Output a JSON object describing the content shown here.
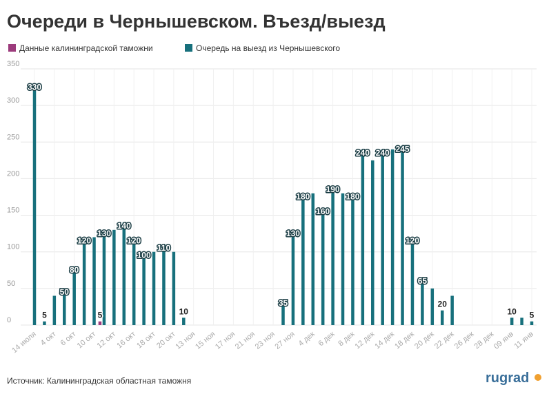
{
  "chart_data": {
    "type": "bar",
    "title": "Очереди в Чернышевском. Въезд/выезд",
    "source": "Источник: Калининградская областная таможня",
    "logo": "rugrad",
    "categories": [
      "14 июля",
      null,
      "4 окт",
      null,
      "6 окт",
      null,
      "10 окт",
      null,
      "12 окт",
      null,
      "16 окт",
      null,
      "18 окт",
      null,
      "20 окт",
      null,
      "13 ноя",
      null,
      "15 ноя",
      null,
      "17 ноя",
      null,
      "21 ноя",
      null,
      "23 ноя",
      null,
      "27 ноя",
      null,
      "4 дек",
      null,
      "6 дек",
      null,
      "8 дек",
      null,
      "12 дек",
      null,
      "14 дек",
      null,
      "18 дек",
      null,
      "20 дек",
      null,
      "22 дек",
      null,
      "26 дек",
      null,
      "28 дек",
      null,
      "09 янв",
      null,
      "11 янв"
    ],
    "series": [
      {
        "name": "Данные калининградской таможни",
        "color": "#9c3b7c",
        "values": [
          null,
          null,
          null,
          null,
          null,
          null,
          null,
          5,
          null,
          null,
          null,
          null,
          null,
          null,
          null,
          null,
          null,
          null,
          null,
          null,
          null,
          null,
          null,
          null,
          null,
          null,
          null,
          null,
          null,
          null,
          null,
          null,
          null,
          null,
          null,
          null,
          null,
          null,
          null,
          null,
          null,
          null,
          null,
          null,
          null,
          null,
          null,
          null,
          null,
          null,
          null
        ],
        "value_labels": [
          null,
          null,
          null,
          null,
          null,
          null,
          null,
          "5",
          null,
          null,
          null,
          null,
          null,
          null,
          null,
          null,
          null,
          null,
          null,
          null,
          null,
          null,
          null,
          null,
          null,
          null,
          null,
          null,
          null,
          null,
          null,
          null,
          null,
          null,
          null,
          null,
          null,
          null,
          null,
          null,
          null,
          null,
          null,
          null,
          null,
          null,
          null,
          null,
          null,
          null,
          null
        ]
      },
      {
        "name": "Очередь на выезд из Чернышевского",
        "color": "#17707c",
        "values": [
          330,
          5,
          40,
          50,
          80,
          120,
          120,
          130,
          130,
          140,
          120,
          100,
          100,
          110,
          100,
          10,
          null,
          null,
          null,
          null,
          null,
          null,
          null,
          null,
          null,
          35,
          130,
          180,
          180,
          160,
          190,
          180,
          180,
          240,
          225,
          240,
          240,
          245,
          120,
          65,
          50,
          20,
          40,
          null,
          null,
          null,
          null,
          null,
          10,
          10,
          5
        ],
        "value_labels": [
          "330",
          "5",
          null,
          "50",
          "80",
          "120",
          null,
          "130",
          null,
          "140",
          "120",
          "100",
          null,
          "110",
          null,
          "10",
          null,
          null,
          null,
          null,
          null,
          null,
          null,
          null,
          null,
          "35",
          "130",
          "180",
          null,
          "160",
          "190",
          null,
          "180",
          "240",
          null,
          "240",
          null,
          "245",
          "120",
          "65",
          null,
          "20",
          null,
          null,
          null,
          null,
          null,
          null,
          "10",
          null,
          "5"
        ]
      }
    ],
    "ylim": [
      0,
      350
    ],
    "yticks": [
      0,
      50,
      100,
      150,
      200,
      250,
      300,
      350
    ],
    "grid": true
  }
}
